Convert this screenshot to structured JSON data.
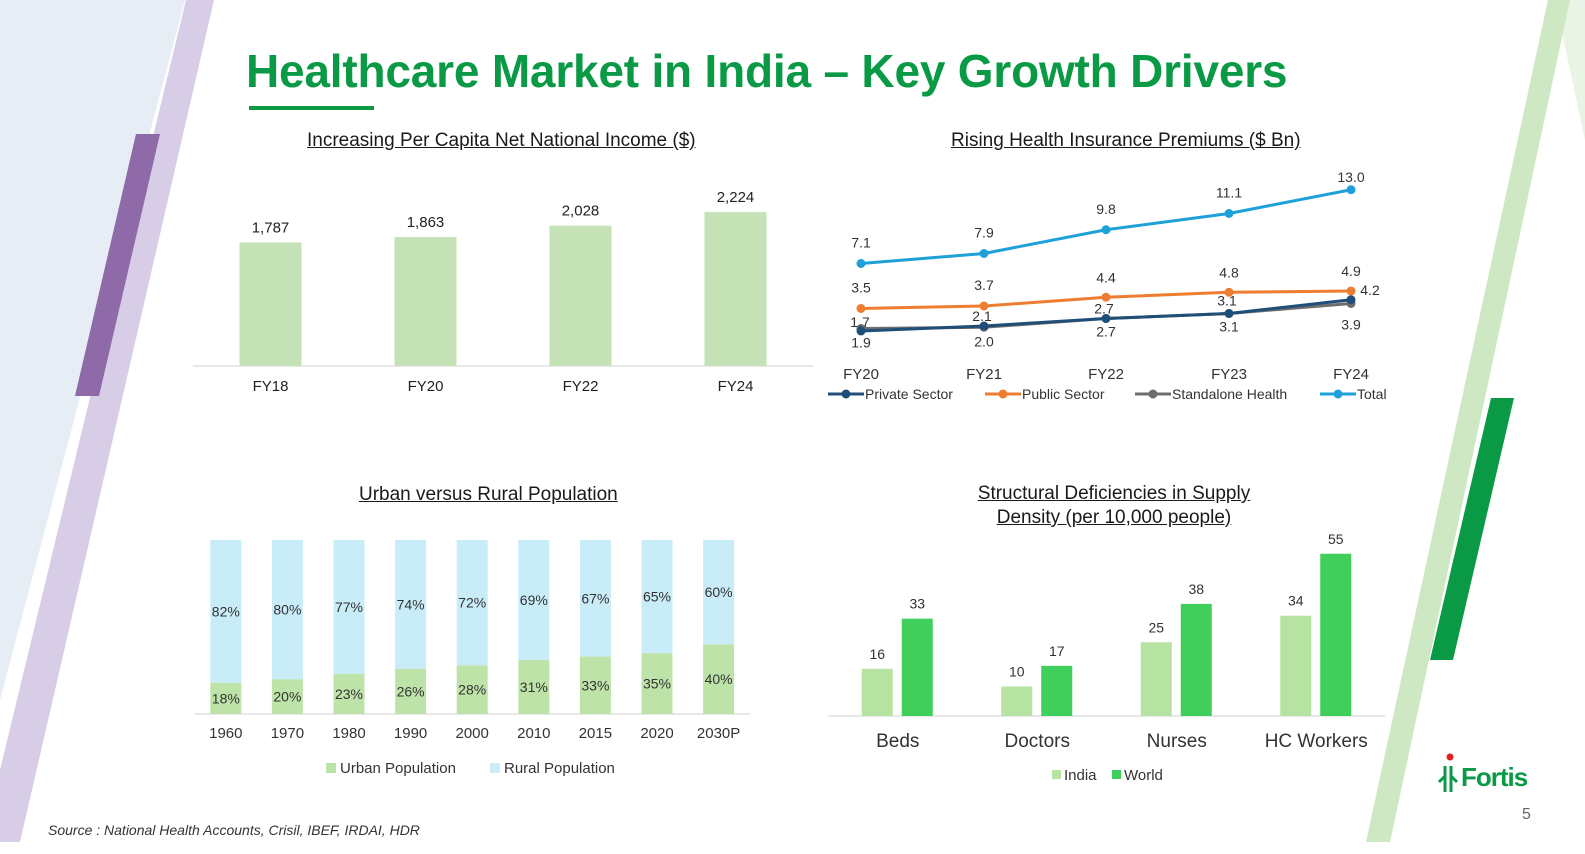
{
  "slide": {
    "title": "Healthcare Market in India – Key Growth Drivers",
    "source": "Source : National Health Accounts, Crisil, IBEF, IRDAI, HDR",
    "page_number": "5",
    "logo_text": "Fortis",
    "colors": {
      "brand_green": "#0a9a46",
      "purple": "#8f6aa8",
      "light_purple": "#d5cbe3",
      "light_green": "#c6e3bd"
    }
  },
  "chart_data": [
    {
      "id": "income",
      "type": "bar",
      "title": "Increasing Per Capita Net National Income ($)",
      "categories": [
        "FY18",
        "FY20",
        "FY22",
        "FY24"
      ],
      "values": [
        1787,
        1863,
        2028,
        2224
      ],
      "labels": [
        "1,787",
        "1,863",
        "2,028",
        "2,224"
      ],
      "color": "#c5e2b6"
    },
    {
      "id": "insurance",
      "type": "line",
      "title": "Rising Health Insurance Premiums ($ Bn)",
      "categories": [
        "FY20",
        "FY21",
        "FY22",
        "FY23",
        "FY24"
      ],
      "series": [
        {
          "name": "Private Sector",
          "color": "#1f4e79",
          "values": [
            1.7,
            2.1,
            2.7,
            3.1,
            4.2
          ],
          "labels": [
            "1.7",
            "2.1",
            "2.7",
            "3.1",
            "4.2"
          ]
        },
        {
          "name": "Public Sector",
          "color": "#ed7d31",
          "values": [
            3.5,
            3.7,
            4.4,
            4.8,
            4.9
          ],
          "labels": [
            "3.5",
            "3.7",
            "4.4",
            "4.8",
            "4.9"
          ]
        },
        {
          "name": "Standalone Health",
          "color": "#6d6d6d",
          "values": [
            1.9,
            2.0,
            2.7,
            3.1,
            3.9
          ],
          "labels": [
            "1.9",
            "2.0",
            "2.7",
            "3.1",
            "3.9"
          ]
        },
        {
          "name": "Total",
          "color": "#1ea0d8",
          "values": [
            7.1,
            7.9,
            9.8,
            11.1,
            13.0
          ],
          "labels": [
            "7.1",
            "7.9",
            "9.8",
            "11.1",
            "13.0"
          ]
        }
      ]
    },
    {
      "id": "population",
      "type": "bar",
      "stacked": true,
      "title": "Urban versus Rural Population",
      "categories": [
        "1960",
        "1970",
        "1980",
        "1990",
        "2000",
        "2010",
        "2015",
        "2020",
        "2030P"
      ],
      "series": [
        {
          "name": "Urban Population",
          "color": "#bde3a8",
          "values": [
            18,
            20,
            23,
            26,
            28,
            31,
            33,
            35,
            40
          ],
          "labels": [
            "18%",
            "20%",
            "23%",
            "26%",
            "28%",
            "31%",
            "33%",
            "35%",
            "40%"
          ]
        },
        {
          "name": "Rural Population",
          "color": "#c9ecf9",
          "values": [
            82,
            80,
            77,
            74,
            72,
            69,
            67,
            65,
            60
          ],
          "labels": [
            "82%",
            "80%",
            "77%",
            "74%",
            "72%",
            "69%",
            "67%",
            "65%",
            "60%"
          ]
        }
      ]
    },
    {
      "id": "supply",
      "type": "bar",
      "title_line1": "Structural Deficiencies in Supply",
      "title_line2": "Density (per 10,000 people)",
      "categories": [
        "Beds",
        "Doctors",
        "Nurses",
        "HC Workers"
      ],
      "series": [
        {
          "name": "India",
          "color": "#b6e3a2",
          "values": [
            16,
            10,
            25,
            34
          ],
          "labels": [
            "16",
            "10",
            "25",
            "34"
          ]
        },
        {
          "name": "World",
          "color": "#3fcf5a",
          "values": [
            33,
            17,
            38,
            55
          ],
          "labels": [
            "33",
            "17",
            "38",
            "55"
          ]
        }
      ]
    }
  ]
}
